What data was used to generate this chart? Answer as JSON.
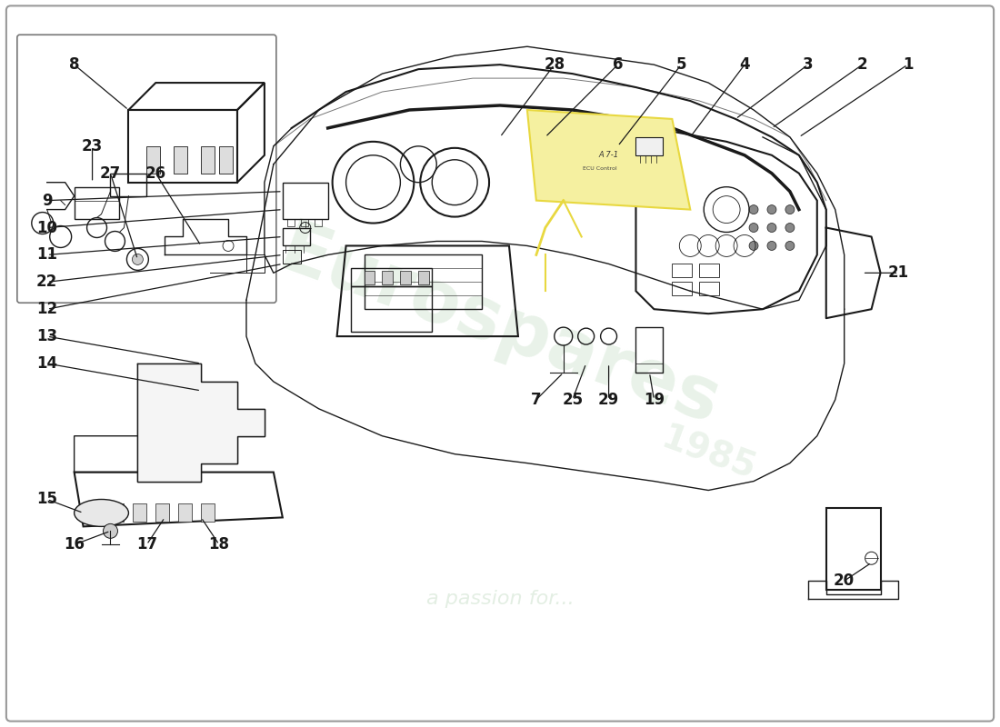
{
  "background_color": "#ffffff",
  "border_color": "#999999",
  "line_color": "#1a1a1a",
  "watermark1_text": "Eurospares",
  "watermark1_color": "#c8e0c8",
  "watermark1_alpha": 0.4,
  "watermark2_text": "a passion for...",
  "watermark2_color": "#c8dfc8",
  "watermark2_alpha": 0.5,
  "watermark3_text": "1985",
  "watermark3_color": "#c8dfc8",
  "watermark3_alpha": 0.35,
  "label_fontsize": 12,
  "label_bold": true,
  "inset_border_color": "#777777",
  "yellow_color": "#e8d840",
  "yellow_fill": "#f5f0a0"
}
